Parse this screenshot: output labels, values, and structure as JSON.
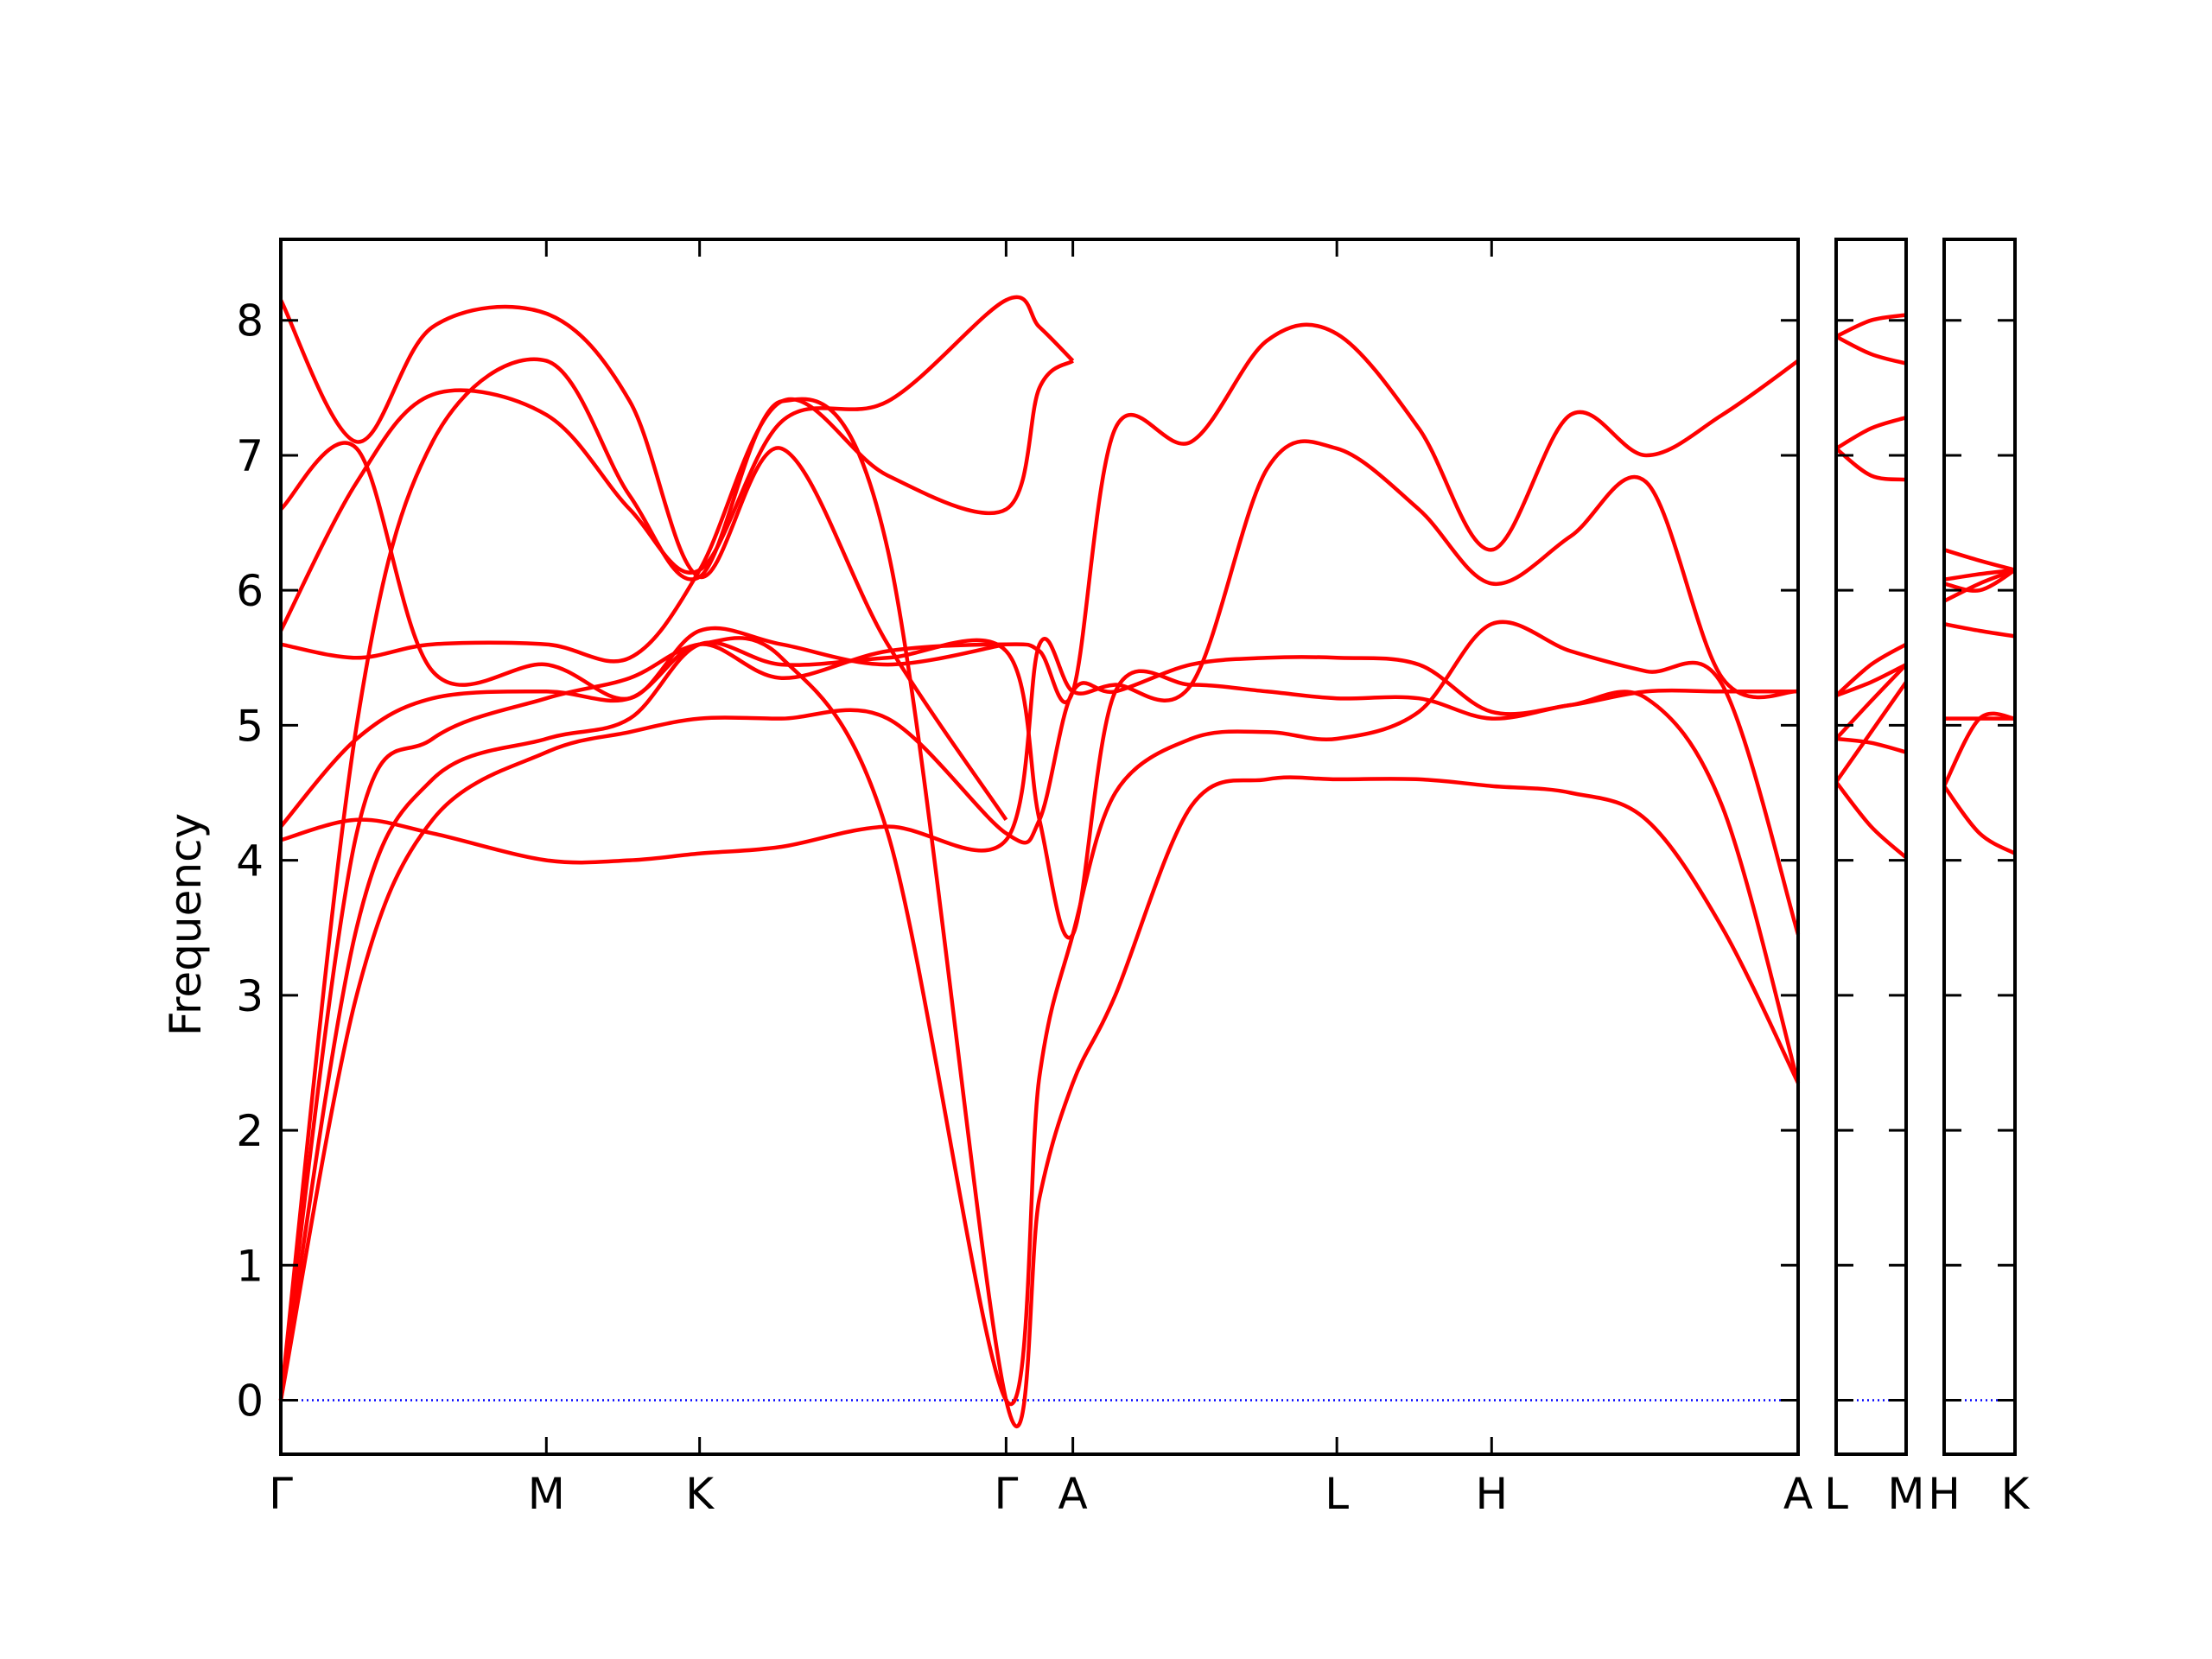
{
  "chart_data": {
    "type": "line",
    "title": "",
    "xlabel": "",
    "ylabel": "Frequency",
    "ylim": [
      -0.4,
      8.6
    ],
    "yticks": [
      0,
      1,
      2,
      3,
      4,
      5,
      6,
      7,
      8
    ],
    "grid": false,
    "legend": "none",
    "line_color": "#ff0000",
    "zero_line_color": "#0000ff",
    "panels": [
      {
        "xlim": [
          0,
          1
        ],
        "ticks": [
          {
            "x": 0.0,
            "label": "Γ"
          },
          {
            "x": 0.175,
            "label": "M"
          },
          {
            "x": 0.276,
            "label": "K"
          },
          {
            "x": 0.478,
            "label": "Γ"
          },
          {
            "x": 0.522,
            "label": "A"
          },
          {
            "x": 0.696,
            "label": "L"
          },
          {
            "x": 0.798,
            "label": "H"
          },
          {
            "x": 1.0,
            "label": "A"
          }
        ],
        "series": [
          {
            "x": [
              0,
              0.05,
              0.1,
              0.175,
              0.23,
              0.276,
              0.33,
              0.4,
              0.478,
              0.5,
              0.522,
              0.55,
              0.6,
              0.65,
              0.696,
              0.75,
              0.798,
              0.85,
              0.9,
              0.95,
              1.0
            ],
            "y": [
              0,
              3.0,
              4.3,
              4.8,
              4.95,
              5.05,
              5.05,
              5.05,
              4.2,
              4.3,
              5.25,
              5.25,
              5.45,
              5.5,
              5.5,
              5.45,
              5.1,
              5.15,
              5.25,
              5.25,
              5.25
            ]
          },
          {
            "x": [
              0,
              0.05,
              0.1,
              0.175,
              0.23,
              0.276,
              0.33,
              0.4,
              0.478,
              0.5,
              0.522,
              0.55,
              0.6,
              0.65,
              0.696,
              0.75,
              0.798,
              0.85,
              0.9,
              0.95,
              1.0
            ],
            "y": [
              0,
              3.5,
              4.6,
              4.9,
              5.05,
              5.6,
              5.45,
              5.5,
              5.55,
              4.3,
              3.45,
              5.25,
              5.3,
              5.25,
              5.2,
              5.2,
              5.05,
              5.15,
              5.2,
              4.4,
              2.35
            ]
          },
          {
            "x": [
              0,
              0.05,
              0.1,
              0.175,
              0.23,
              0.276,
              0.33,
              0.4,
              0.478,
              0.5,
              0.522,
              0.55,
              0.6,
              0.65,
              0.696,
              0.75,
              0.798,
              0.85,
              0.9,
              0.95,
              1.0
            ],
            "y": [
              0,
              5.0,
              7.1,
              7.7,
              6.7,
              6.1,
              7.4,
              6.3,
              0,
              1.5,
              2.35,
              3.0,
              4.4,
              4.6,
              4.6,
              4.6,
              4.55,
              4.5,
              4.3,
              3.5,
              2.35
            ]
          },
          {
            "x": [
              0,
              0.05,
              0.1,
              0.175,
              0.23,
              0.276,
              0.33,
              0.4,
              0.478,
              0.5,
              0.522,
              0.55,
              0.6,
              0.65,
              0.696,
              0.75,
              0.798,
              0.85,
              0.9,
              0.95,
              1.0
            ],
            "y": [
              0,
              4.2,
              4.9,
              5.2,
              5.35,
              5.6,
              5.5,
              4.2,
              0,
              2.4,
              3.45,
              4.5,
              4.9,
              4.95,
              4.9,
              5.1,
              5.75,
              5.55,
              5.4,
              5.3,
              3.45
            ]
          },
          {
            "x": [
              0,
              0.05,
              0.1,
              0.175,
              0.23,
              0.276,
              0.33,
              0.4,
              0.478,
              0.5,
              0.522,
              0.55,
              0.6,
              0.65,
              0.696,
              0.75,
              0.798,
              0.85,
              0.9,
              0.95,
              1.0
            ],
            "y": [
              4.15,
              4.3,
              4.2,
              4.0,
              4.0,
              4.05,
              4.1,
              4.25,
              4.15,
              5.6,
              5.25,
              5.3,
              5.3,
              6.9,
              7.05,
              6.6,
              6.05,
              6.4,
              6.8,
              5.35,
              5.25
            ]
          },
          {
            "x": [
              0,
              0.05,
              0.1,
              0.175,
              0.23,
              0.276,
              0.33,
              0.4,
              0.478,
              0.5,
              0.522,
              0.55,
              0.6,
              0.65,
              0.696,
              0.75,
              0.798,
              0.85,
              0.9,
              0.95,
              1.0
            ],
            "y": [
              4.25,
              4.9,
              5.2,
              5.25,
              5.2,
              5.6,
              5.35,
              5.55,
              5.6,
              5.55,
              5.25,
              7.2,
              7.1,
              7.85,
              7.9,
              7.2,
              6.3,
              7.3,
              7.0,
              7.3,
              7.7
            ]
          },
          {
            "x": [
              0,
              0.05,
              0.1,
              0.175,
              0.23,
              0.276,
              0.33,
              0.4,
              0.478,
              0.5,
              0.522
            ],
            "y": [
              5.6,
              5.5,
              5.6,
              5.6,
              5.5,
              6.15,
              7.4,
              6.85,
              6.6,
              7.5,
              7.7
            ]
          },
          {
            "x": [
              0,
              0.05,
              0.1,
              0.175,
              0.23,
              0.276,
              0.33,
              0.4,
              0.478,
              0.5,
              0.522
            ],
            "y": [
              5.7,
              6.8,
              7.45,
              7.3,
              6.6,
              6.15,
              7.25,
              7.4,
              8.15,
              7.95,
              7.7
            ]
          },
          {
            "x": [
              0,
              0.05,
              0.1,
              0.175,
              0.23,
              0.276,
              0.33,
              0.4,
              0.478
            ],
            "y": [
              6.6,
              7.05,
              5.4,
              5.45,
              5.2,
              5.7,
              5.6,
              5.45,
              5.6
            ]
          },
          {
            "x": [
              0,
              0.05,
              0.1,
              0.175,
              0.23,
              0.276,
              0.33,
              0.4,
              0.478
            ],
            "y": [
              8.15,
              7.1,
              7.95,
              8.05,
              7.4,
              6.1,
              7.05,
              5.6,
              4.3
            ]
          }
        ]
      },
      {
        "xlim": [
          0,
          1
        ],
        "ticks": [
          {
            "x": 0,
            "label": "L"
          },
          {
            "x": 1,
            "label": "M"
          }
        ],
        "series": [
          {
            "x": [
              0,
              0.5,
              1
            ],
            "y": [
              4.58,
              4.25,
              4.02
            ]
          },
          {
            "x": [
              0,
              0.5,
              1
            ],
            "y": [
              4.58,
              4.95,
              5.32
            ]
          },
          {
            "x": [
              0,
              0.5,
              1
            ],
            "y": [
              4.9,
              4.87,
              4.8
            ]
          },
          {
            "x": [
              0,
              0.5,
              1
            ],
            "y": [
              4.9,
              5.18,
              5.45
            ]
          },
          {
            "x": [
              0,
              0.5,
              1
            ],
            "y": [
              5.22,
              5.45,
              5.6
            ]
          },
          {
            "x": [
              0,
              0.5,
              1
            ],
            "y": [
              5.22,
              5.32,
              5.45
            ]
          },
          {
            "x": [
              0,
              0.5,
              1
            ],
            "y": [
              7.05,
              6.85,
              6.82
            ]
          },
          {
            "x": [
              0,
              0.5,
              1
            ],
            "y": [
              7.05,
              7.2,
              7.28
            ]
          },
          {
            "x": [
              0,
              0.5,
              1
            ],
            "y": [
              7.88,
              7.75,
              7.68
            ]
          },
          {
            "x": [
              0,
              0.5,
              1
            ],
            "y": [
              7.88,
              8.0,
              8.04
            ]
          }
        ]
      },
      {
        "xlim": [
          0,
          1
        ],
        "ticks": [
          {
            "x": 0,
            "label": "H"
          },
          {
            "x": 1,
            "label": "K"
          }
        ],
        "series": [
          {
            "x": [
              0,
              0.5,
              1
            ],
            "y": [
              4.55,
              4.2,
              4.05
            ]
          },
          {
            "x": [
              0,
              0.5,
              1
            ],
            "y": [
              4.55,
              5.05,
              5.05
            ]
          },
          {
            "x": [
              0,
              0.5,
              1
            ],
            "y": [
              5.05,
              5.05,
              5.05
            ]
          },
          {
            "x": [
              0,
              0.5,
              1
            ],
            "y": [
              5.75,
              5.7,
              5.66
            ]
          },
          {
            "x": [
              0,
              0.5,
              1
            ],
            "y": [
              5.92,
              6.05,
              6.15
            ]
          },
          {
            "x": [
              0,
              0.5,
              1
            ],
            "y": [
              6.05,
              6.0,
              6.15
            ]
          },
          {
            "x": [
              0,
              0.5,
              1
            ],
            "y": [
              6.08,
              6.12,
              6.15
            ]
          },
          {
            "x": [
              0,
              0.5,
              1
            ],
            "y": [
              6.3,
              6.22,
              6.15
            ]
          }
        ]
      }
    ]
  }
}
